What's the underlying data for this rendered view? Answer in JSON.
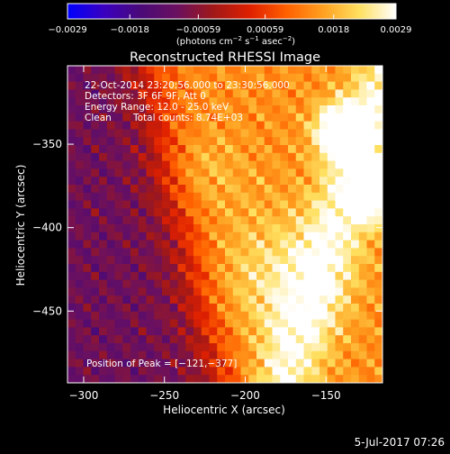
{
  "chart_data": {
    "type": "heatmap",
    "title": "Reconstructed RHESSI Image",
    "xlabel": "Heliocentric X (arcsec)",
    "ylabel": "Heliocentric Y (arcsec)",
    "xlim": [
      -310,
      -115
    ],
    "ylim": [
      -493,
      -303
    ],
    "x_ticks": [
      -300,
      -250,
      -200,
      -150
    ],
    "x_tick_labels": [
      "−300",
      "−250",
      "−200",
      "−150"
    ],
    "y_ticks": [
      -450,
      -400,
      -350
    ],
    "y_tick_labels": [
      "−450",
      "−400",
      "−350"
    ],
    "colorbar": {
      "range": [
        -0.0029,
        0.0029
      ],
      "tick_values": [
        -0.0029,
        -0.0018,
        -0.00059,
        0.00059,
        0.0018,
        0.0029
      ],
      "tick_labels": [
        "−0.0029",
        "−0.0018",
        "−0.00059",
        "0.00059",
        "0.0018",
        "0.0029"
      ],
      "unit_main": "(photons cm",
      "unit_sup1": "−2",
      "unit_mid": " s",
      "unit_sup2": "−1",
      "unit_tail": " asec",
      "unit_sup3": "−2",
      "unit_end": ")",
      "colors": [
        "#0000ff",
        "#3a00c0",
        "#4a0a78",
        "#6a1060",
        "#a01818",
        "#e02000",
        "#ff6000",
        "#ffa020",
        "#ffe060",
        "#ffffff"
      ]
    },
    "sources": [
      {
        "x": -140,
        "y": -342,
        "intensity": 0.0027
      },
      {
        "x": -118,
        "y": -378,
        "intensity": 0.0029
      },
      {
        "x": -183,
        "y": -430,
        "intensity": 0.0016
      },
      {
        "x": -228,
        "y": -367,
        "intensity": 0.001
      }
    ],
    "info": {
      "time_range": "22-Oct-2014 23:20:56.000 to 23:30:56.000",
      "detectors": "Detectors: 3F 6F 9F, Att 0",
      "energy": "Energy Range: 12.0 - 25.0 keV",
      "method": "Clean",
      "counts": "Total counts: 8.74E+03",
      "peak": "Position of Peak = [−121,−377]"
    },
    "date_stamp": "5-Jul-2017 07:26"
  }
}
